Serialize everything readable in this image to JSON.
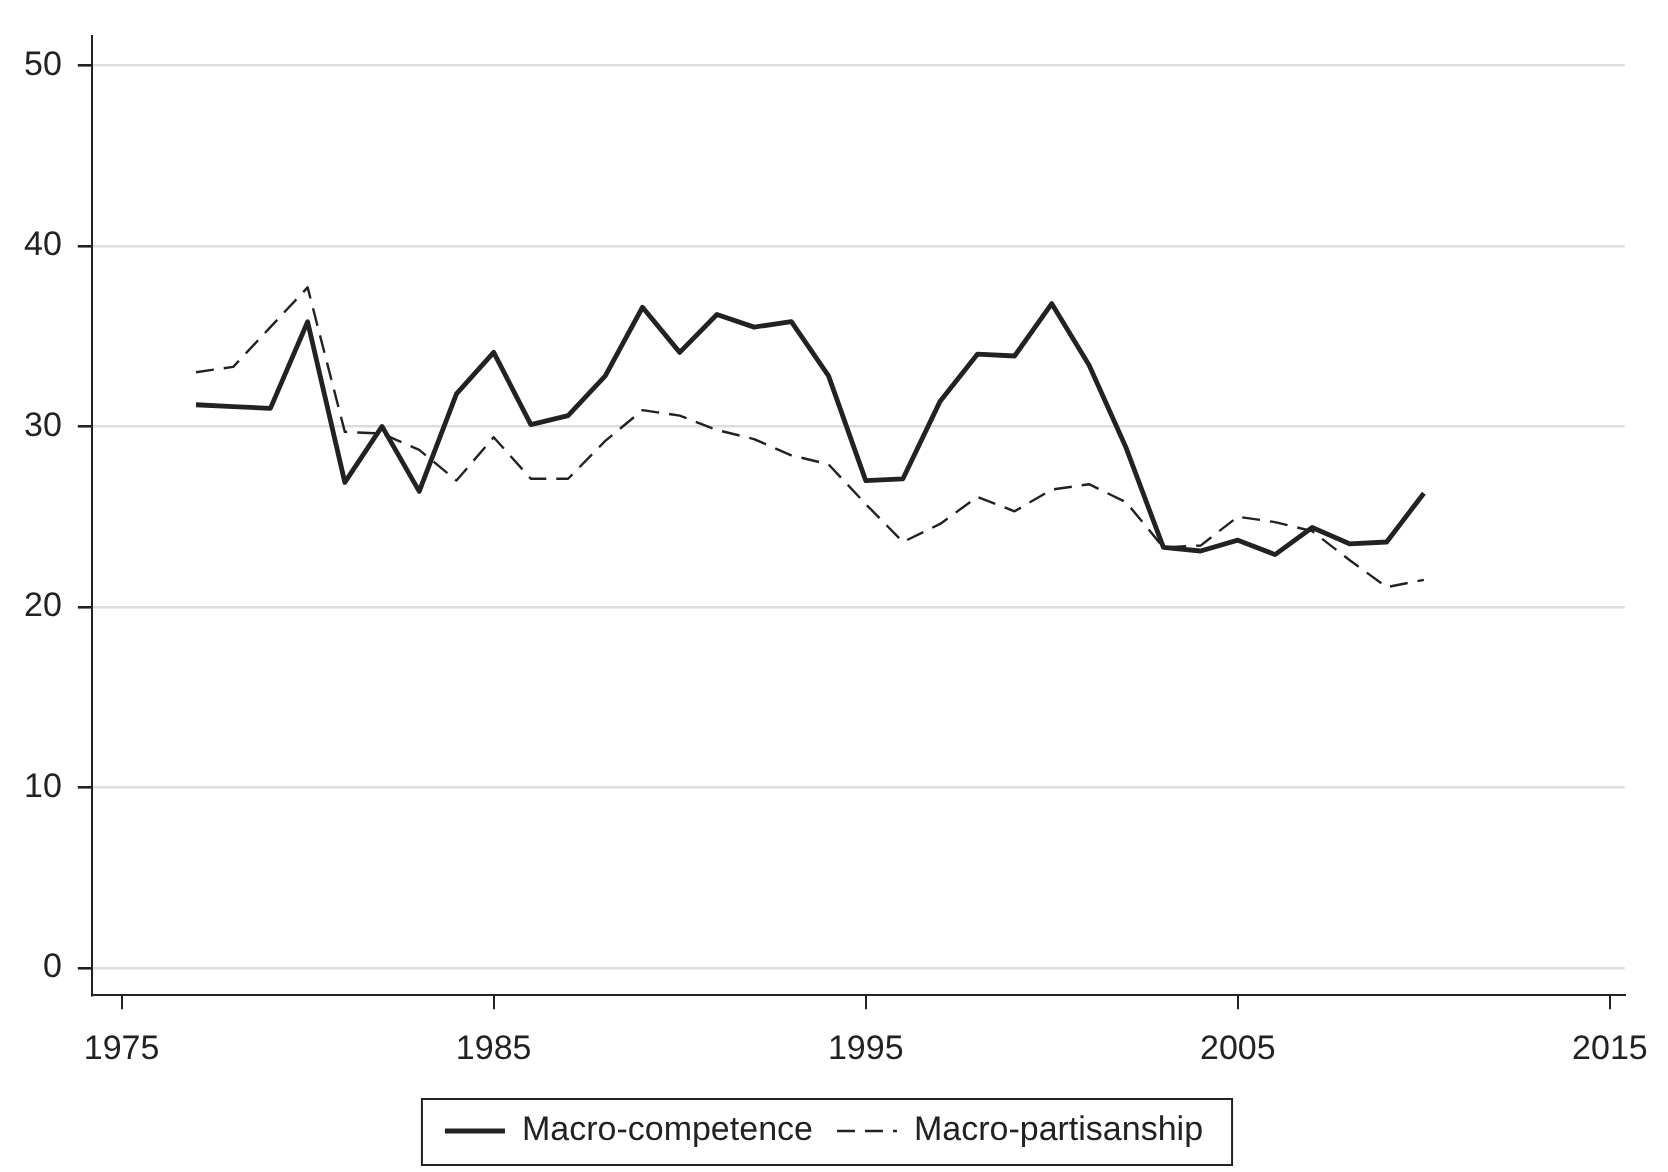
{
  "chart_data": {
    "type": "line",
    "x": [
      1977,
      1978,
      1979,
      1980,
      1981,
      1982,
      1983,
      1984,
      1985,
      1986,
      1987,
      1988,
      1989,
      1990,
      1991,
      1992,
      1993,
      1994,
      1995,
      1996,
      1997,
      1998,
      1999,
      2000,
      2001,
      2002,
      2003,
      2004,
      2005,
      2006,
      2007,
      2008,
      2009,
      2010
    ],
    "series": [
      {
        "name": "Macro-competence",
        "color": "#222222",
        "line_style": "solid",
        "values": [
          31.2,
          31.1,
          31.0,
          35.8,
          26.9,
          30.0,
          26.4,
          31.8,
          34.1,
          30.1,
          30.6,
          32.8,
          36.6,
          34.1,
          36.2,
          35.5,
          35.8,
          32.8,
          27.0,
          27.1,
          31.4,
          34.0,
          33.9,
          36.8,
          33.4,
          28.8,
          23.3,
          23.1,
          23.7,
          22.9,
          24.4,
          23.5,
          23.6,
          26.3
        ]
      },
      {
        "name": "Macro-partisanship",
        "color": "#222222",
        "line_style": "dashed",
        "values": [
          33.0,
          33.3,
          35.5,
          37.7,
          29.7,
          29.6,
          28.7,
          27.0,
          29.4,
          27.1,
          27.1,
          29.2,
          30.9,
          30.6,
          29.8,
          29.3,
          28.4,
          27.9,
          25.7,
          23.6,
          24.6,
          26.1,
          25.3,
          26.5,
          26.8,
          25.8,
          23.3,
          23.4,
          25.0,
          24.7,
          24.2,
          22.6,
          21.1,
          21.5
        ]
      }
    ],
    "xlim": [
      1974.2,
      2015.4
    ],
    "xticks": [
      1975,
      1985,
      1995,
      2005,
      2015
    ],
    "ylim": [
      -1.5,
      51.6
    ],
    "yticks": [
      0,
      10,
      20,
      30,
      40,
      50
    ],
    "grid": "y",
    "legend": "bottom",
    "marker": "none"
  }
}
